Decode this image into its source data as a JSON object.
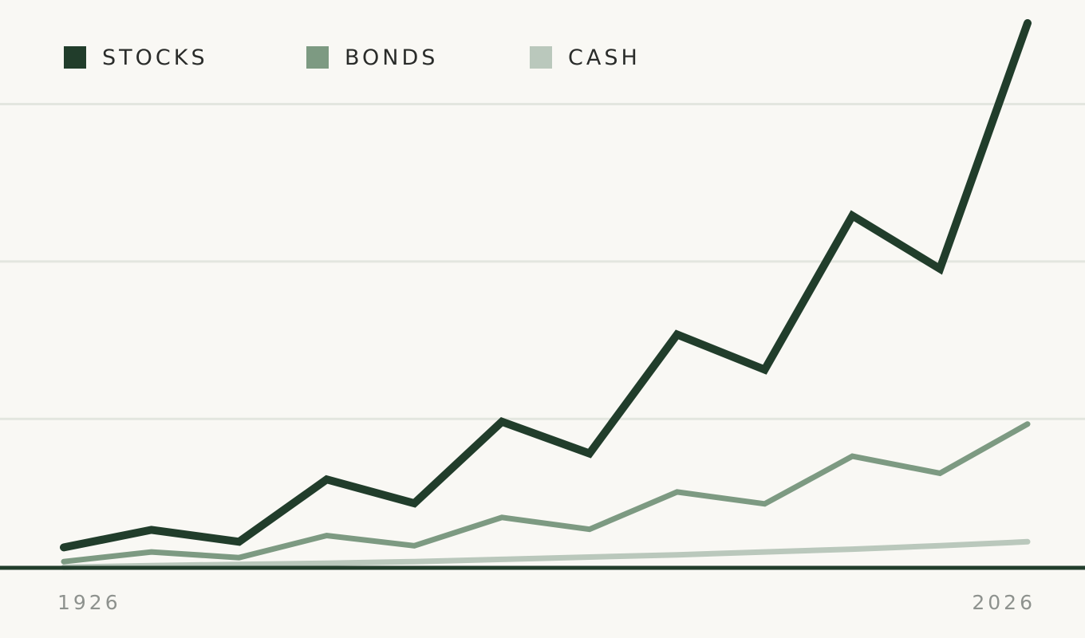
{
  "chart_data": {
    "type": "line",
    "title": "",
    "xlabel": "",
    "ylabel": "",
    "x_tick_labels": [
      "1926",
      "2026"
    ],
    "x": [
      0,
      1,
      2,
      3,
      4,
      5,
      6,
      7,
      8,
      9,
      10,
      11
    ],
    "ylim": [
      0,
      1
    ],
    "grid": true,
    "grid_values": [
      0.263,
      0.541,
      0.819
    ],
    "legend_position": "top-left",
    "series": [
      {
        "name": "STOCKS",
        "color": "#213d2b",
        "values": [
          0.036,
          0.067,
          0.046,
          0.156,
          0.114,
          0.258,
          0.202,
          0.412,
          0.35,
          0.622,
          0.528,
          0.962
        ]
      },
      {
        "name": "BONDS",
        "color": "#7d9a82",
        "values": [
          0.011,
          0.028,
          0.018,
          0.057,
          0.039,
          0.089,
          0.068,
          0.134,
          0.113,
          0.197,
          0.167,
          0.254
        ]
      },
      {
        "name": "CASH",
        "color": "#bac8bc",
        "values": [
          0.001,
          0.004,
          0.006,
          0.008,
          0.011,
          0.015,
          0.019,
          0.023,
          0.028,
          0.033,
          0.039,
          0.046
        ]
      }
    ],
    "axis_color": "#213d2b",
    "grid_color": "#e3e6df"
  }
}
